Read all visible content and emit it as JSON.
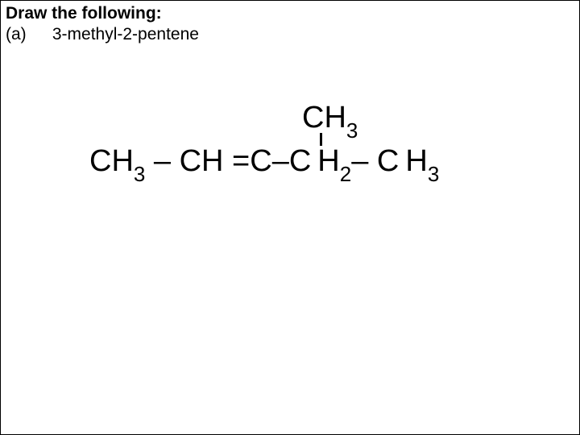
{
  "heading": "Draw the following:",
  "part": {
    "label": "(a)",
    "name": "3-methyl-2-pentene"
  },
  "structure": {
    "branch": {
      "text": "CH",
      "sub": "3"
    },
    "chain": [
      {
        "text": "CH",
        "sub": "3"
      },
      {
        "bond": " – "
      },
      {
        "text": "CH"
      },
      {
        "bond": " ="
      },
      {
        "text": "C"
      },
      {
        "bond": "–"
      },
      {
        "text": "C"
      },
      {
        "mid": true
      },
      {
        "text": "H",
        "sub": "2"
      },
      {
        "bond": "– "
      },
      {
        "text": "C"
      },
      {
        "mid": true
      },
      {
        "text": "H",
        "sub": "3"
      }
    ]
  },
  "colors": {
    "text": "#000000",
    "background": "#ffffff"
  },
  "fonts": {
    "heading_size": 21,
    "formula_size": 38,
    "sub_size": 26
  }
}
